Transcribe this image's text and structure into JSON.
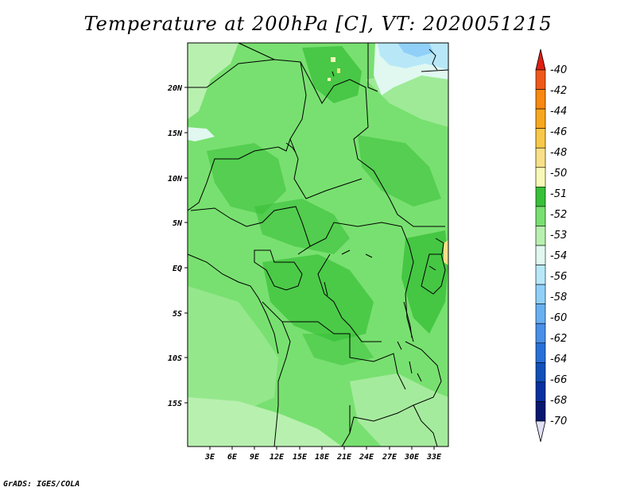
{
  "title": "Temperature at 200hPa [C], VT: 2020051215",
  "footer": "GrADS: IGES/COLA",
  "map": {
    "x_ticks": [
      "3E",
      "6E",
      "9E",
      "12E",
      "15E",
      "18E",
      "21E",
      "24E",
      "27E",
      "30E",
      "33E"
    ],
    "y_ticks": [
      "20N",
      "15N",
      "10N",
      "5N",
      "EQ",
      "5S",
      "10S",
      "15S"
    ]
  },
  "colorbar": {
    "labels": [
      "-40",
      "-42",
      "-44",
      "-46",
      "-48",
      "-50",
      "-51",
      "-52",
      "-53",
      "-54",
      "-56",
      "-58",
      "-60",
      "-62",
      "-64",
      "-66",
      "-68",
      "-70"
    ],
    "colors": [
      "#e01e12",
      "#f0581a",
      "#f88810",
      "#f8a820",
      "#f8c848",
      "#f8e088",
      "#f8f8b8",
      "#38c038",
      "#78e070",
      "#b8f0b0",
      "#e0f8f0",
      "#b8e8f8",
      "#90d0f8",
      "#68b0f0",
      "#4890e8",
      "#2870d8",
      "#1050b8",
      "#0830a0",
      "#081870",
      "#e0e0f8"
    ]
  },
  "field_colors": {
    "dark_green": "#38c038",
    "mid_green": "#78e070",
    "light_green": "#b8f0b0",
    "pale_cyan": "#e0f8f0",
    "light_blue": "#b8e8f8",
    "blue": "#90d0f8",
    "yellow": "#f8f8b8",
    "tan": "#f8e088"
  }
}
